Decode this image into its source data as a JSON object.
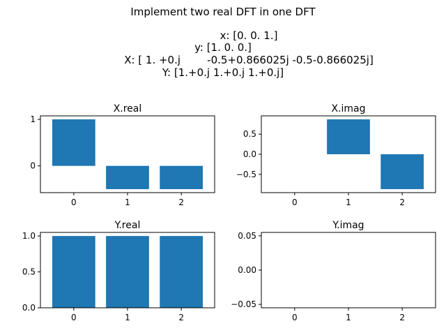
{
  "suptitle": [
    "Implement two real DFT in one DFT",
    "",
    "x: [0. 0. 1.]",
    "y: [1. 0. 0.]",
    "X: [ 1. +0.j        -0.5+0.866025j -0.5-0.866025j]",
    "Y: [1.+0.j 1.+0.j 1.+0.j]"
  ],
  "colors": {
    "bar": "#1f77b4",
    "axis": "#000000"
  },
  "chart_data": [
    {
      "type": "bar",
      "title": "X.real",
      "categories": [
        "0",
        "1",
        "2"
      ],
      "values": [
        1.0,
        -0.5,
        -0.5
      ],
      "ylim": [
        -0.575,
        1.075
      ],
      "yticks": [
        0,
        1
      ],
      "ytick_labels": [
        "0",
        "1"
      ],
      "grid": false
    },
    {
      "type": "bar",
      "title": "X.imag",
      "categories": [
        "0",
        "1",
        "2"
      ],
      "values": [
        0.0,
        0.866025,
        -0.866025
      ],
      "ylim": [
        -0.953,
        0.953
      ],
      "yticks": [
        0.5,
        0.0,
        -0.5
      ],
      "ytick_labels": [
        "0.5",
        "0.0",
        "−0.5"
      ],
      "grid": false
    },
    {
      "type": "bar",
      "title": "Y.real",
      "categories": [
        "0",
        "1",
        "2"
      ],
      "values": [
        1.0,
        1.0,
        1.0
      ],
      "ylim": [
        0.0,
        1.05
      ],
      "yticks": [
        1.0,
        0.5,
        0.0
      ],
      "ytick_labels": [
        "1.0",
        "0.5",
        "0.0"
      ],
      "grid": false
    },
    {
      "type": "bar",
      "title": "Y.imag",
      "categories": [
        "0",
        "1",
        "2"
      ],
      "values": [
        0.0,
        0.0,
        0.0
      ],
      "ylim": [
        -0.055,
        0.055
      ],
      "yticks": [
        0.05,
        0.0,
        -0.05
      ],
      "ytick_labels": [
        "0.05",
        "0.00",
        "−0.05"
      ],
      "grid": false
    }
  ]
}
